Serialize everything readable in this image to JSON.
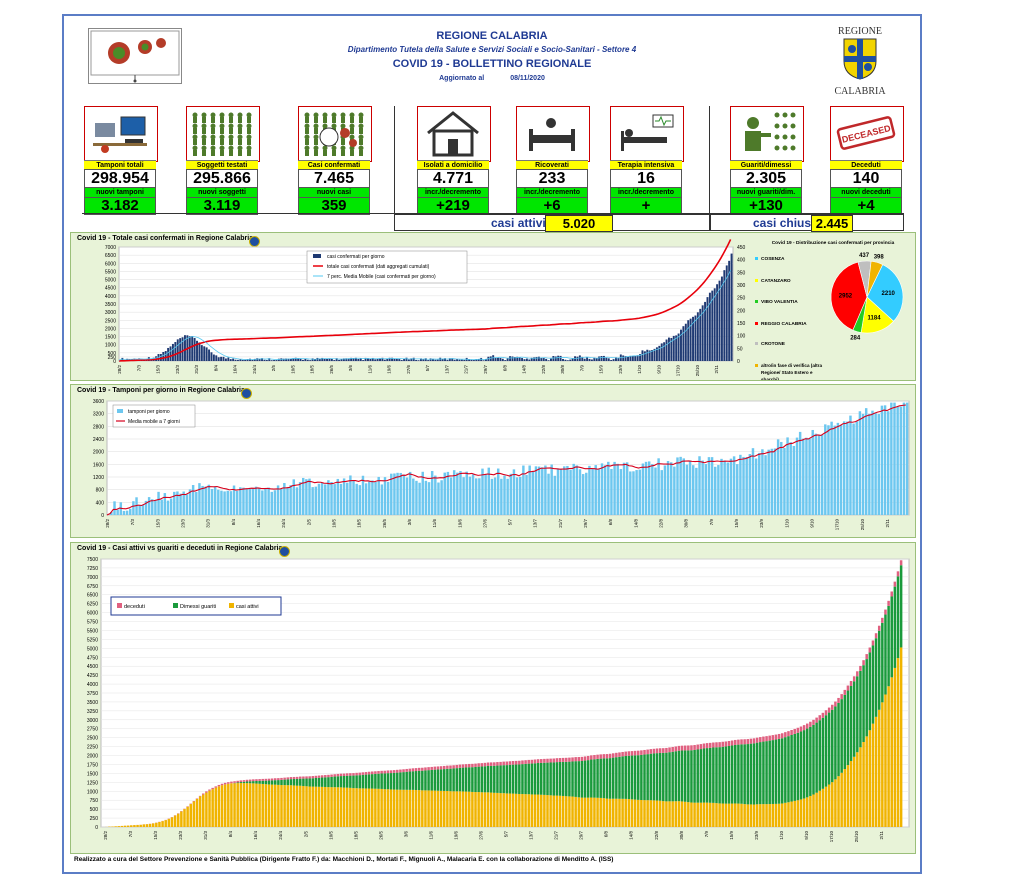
{
  "header": {
    "region": "REGIONE CALABRIA",
    "department": "Dipartimento Tutela della Salute e Servizi Sociali e Socio-Sanitari - Settore 4",
    "bulletin": "COVID 19 - BOLLETTINO REGIONALE",
    "updated_label": "Aggiornato al",
    "updated_date": "08/11/2020",
    "logo_text_top": "REGIONE",
    "logo_text_bottom": "CALABRIA"
  },
  "stats": [
    {
      "label": "Tamponi totali",
      "value": "298.954",
      "sub_label": "nuovi tamponi",
      "sub_value": "3.182",
      "icon": "lab-computer-icon"
    },
    {
      "label": "Soggetti testati",
      "value": "295.866",
      "sub_label": "nuovi soggetti testati",
      "sub_value": "3.119",
      "icon": "people-grid-icon"
    },
    {
      "label": "Casi confermati",
      "value": "7.465",
      "sub_label": "nuovi casi",
      "sub_value": "359",
      "icon": "people-virus-icon"
    },
    {
      "label": "Isolati a domicilio",
      "value": "4.771",
      "sub_label": "incr./decremento",
      "sub_value": "+219",
      "icon": "house-icon"
    },
    {
      "label": "Ricoverati",
      "value": "233",
      "sub_label": "incr./decremento",
      "sub_value": "+6",
      "icon": "hospital-bed-icon"
    },
    {
      "label": "Terapia intensiva",
      "value": "16",
      "sub_label": "incr./decremento",
      "sub_value": "+",
      "icon": "icu-bed-icon"
    },
    {
      "label": "Guariti/dimessi",
      "value": "2.305",
      "sub_label": "nuovi guariti/dim.",
      "sub_value": "+130",
      "icon": "recovered-person-icon"
    },
    {
      "label": "Deceduti",
      "value": "140",
      "sub_label": "nuovi deceduti",
      "sub_value": "+4",
      "icon": "deceased-stamp-icon"
    }
  ],
  "stamp_text": "DECEASED",
  "active": {
    "label": "casi attivi",
    "value": "5.020"
  },
  "closed": {
    "label": "casi chiusi",
    "value": "2.445"
  },
  "chart_data": [
    {
      "type": "bar",
      "title": "Covid 19 - Totale casi confermati in Regione Calabria",
      "legend": [
        "casi confermati per giorno",
        "totale casi confermati (dati aggregati cumulati)",
        "7 perc. Media Mobile (casi confermati per giorno)"
      ],
      "y_left": {
        "min": 0,
        "max": 7000,
        "ticks": [
          0,
          250,
          500,
          750,
          1000,
          1250,
          1500,
          1750,
          2000,
          2250,
          2500,
          2750,
          3000,
          3250,
          3500,
          3750,
          4000,
          4250,
          4500,
          4750,
          5000,
          5250,
          5500,
          5750,
          6000,
          6250,
          6500,
          6750,
          7000
        ]
      },
      "y_right": {
        "min": 0,
        "max": 450,
        "ticks": [
          0,
          50,
          100,
          150,
          200,
          250,
          300,
          350,
          400,
          450
        ]
      },
      "series_summary": {
        "cumulative_start": 1,
        "cumulative_end": 7465,
        "daily_peak_spring": "~100 (late March)",
        "daily_recent_peak": "~400 (early November)"
      }
    },
    {
      "type": "pie",
      "title": "Covid 19 - Distribuzione casi confermati per provincia",
      "slices": [
        {
          "name": "COSENZA",
          "value": 2210,
          "color": "#33ccff"
        },
        {
          "name": "CATANZARO",
          "value": 1184,
          "color": "#ffff00"
        },
        {
          "name": "VIBO VALENTIA",
          "value": 284,
          "color": "#22cc22"
        },
        {
          "name": "REGGIO CALABRIA",
          "value": 2952,
          "color": "#ff0000"
        },
        {
          "name": "CROTONE",
          "value": 437,
          "color": "#bfbfbf"
        },
        {
          "name": "altro/in fase di verifica (altra Regione/ Stato Estero e sbarchi)",
          "value": 398,
          "color": "#f0b400"
        }
      ]
    },
    {
      "type": "bar",
      "title": "Covid 19 - Tamponi per giorno in Regione Calabria",
      "legend": [
        "tamponi per giorno",
        "Media mobile a 7 giorni"
      ],
      "y": {
        "min": 0,
        "max": 3600,
        "ticks": [
          0,
          400,
          800,
          1200,
          1600,
          2000,
          2400,
          2800,
          3200,
          3600
        ]
      },
      "series_summary": {
        "daily_peak": "~3500 (early November)"
      }
    },
    {
      "type": "area",
      "title": "Covid 19 - Casi attivi vs guariti e deceduti in Regione Calabria",
      "legend": [
        "deceduti",
        "Dimessi guariti",
        "casi attivi"
      ],
      "y": {
        "min": 0,
        "max": 7500,
        "ticks": [
          0,
          250,
          500,
          750,
          1000,
          1250,
          1500,
          1750,
          2000,
          2250,
          2500,
          2750,
          3000,
          3250,
          3500,
          3750,
          4000,
          4250,
          4500,
          4750,
          5000,
          5250,
          5500,
          5750,
          6000,
          6250,
          6500,
          6750,
          7000,
          7250,
          7500
        ]
      },
      "series_summary": {
        "final_active": 5020,
        "final_recovered": 2305,
        "final_deceased": 140
      }
    }
  ],
  "x_ticks": [
    "28/2",
    "7/3",
    "15/3",
    "23/3",
    "31/3",
    "8/4",
    "16/4",
    "24/4",
    "2/5",
    "10/5",
    "18/5",
    "26/5",
    "3/6",
    "11/6",
    "19/6",
    "27/6",
    "5/7",
    "13/7",
    "21/7",
    "29/7",
    "6/8",
    "14/8",
    "22/8",
    "30/8",
    "7/9",
    "15/9",
    "23/9",
    "1/10",
    "9/10",
    "17/10",
    "25/10",
    "2/11"
  ],
  "footer": "Realizzato a cura del Settore Prevenzione e Sanità Pubblica (Dirigente Fratto F.) da: Macchioni D., Mortati F., Mignuoli A., Malacaria E. con la collaborazione di Menditto A. (ISS)"
}
